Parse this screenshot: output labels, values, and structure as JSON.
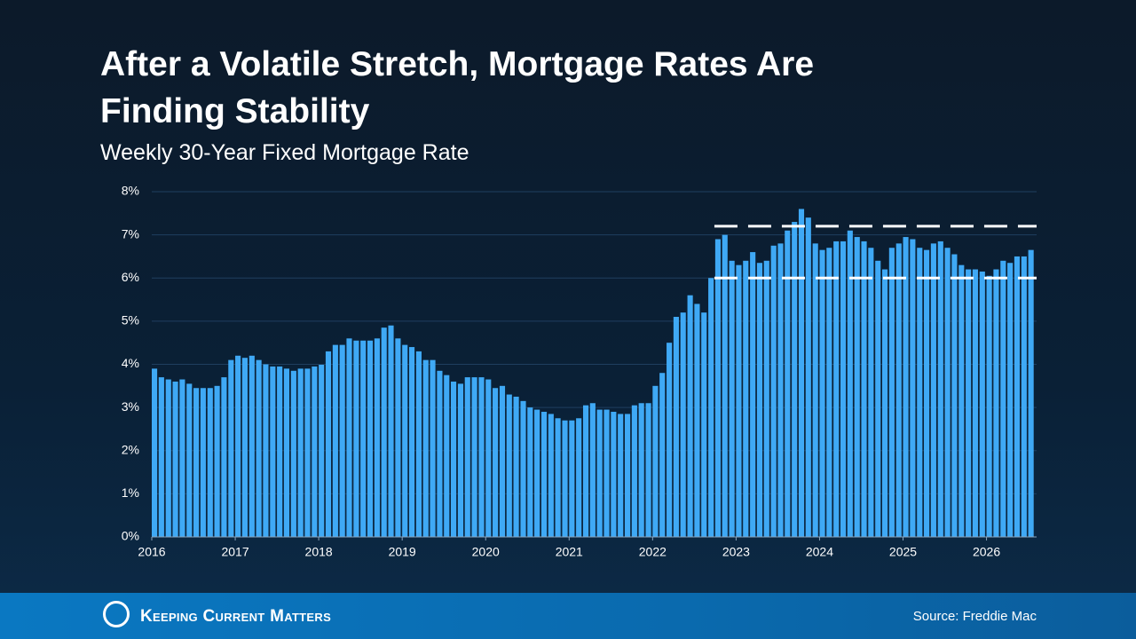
{
  "chart_data": {
    "type": "bar",
    "title": "After a Volatile Stretch, Mortgage Rates Are Finding Stability",
    "subtitle": "Weekly 30-Year Fixed Mortgage Rate",
    "color": "#3fa9f5",
    "grid": true,
    "xlim": [
      2016,
      2026.6
    ],
    "xticks": [
      2016,
      2017,
      2018,
      2019,
      2020,
      2021,
      2022,
      2023,
      2024,
      2025,
      2026
    ],
    "ylim": [
      0,
      8
    ],
    "yticks": [
      {
        "value": 0,
        "label": "0%"
      },
      {
        "value": 1,
        "label": "1%"
      },
      {
        "value": 2,
        "label": "2%"
      },
      {
        "value": 3,
        "label": "3%"
      },
      {
        "value": 4,
        "label": "4%"
      },
      {
        "value": 5,
        "label": "5%"
      },
      {
        "value": 6,
        "label": "6%"
      },
      {
        "value": 7,
        "label": "7%"
      },
      {
        "value": 8,
        "label": "8%"
      }
    ],
    "x": [
      2016,
      2016.083,
      2016.167,
      2016.25,
      2016.333,
      2016.417,
      2016.5,
      2016.583,
      2016.667,
      2016.75,
      2016.833,
      2016.917,
      2017,
      2017.083,
      2017.167,
      2017.25,
      2017.333,
      2017.417,
      2017.5,
      2017.583,
      2017.667,
      2017.75,
      2017.833,
      2017.917,
      2018,
      2018.083,
      2018.167,
      2018.25,
      2018.333,
      2018.417,
      2018.5,
      2018.583,
      2018.667,
      2018.75,
      2018.833,
      2018.917,
      2019,
      2019.083,
      2019.167,
      2019.25,
      2019.333,
      2019.417,
      2019.5,
      2019.583,
      2019.667,
      2019.75,
      2019.833,
      2019.917,
      2020,
      2020.083,
      2020.167,
      2020.25,
      2020.333,
      2020.417,
      2020.5,
      2020.583,
      2020.667,
      2020.75,
      2020.833,
      2020.917,
      2021,
      2021.083,
      2021.167,
      2021.25,
      2021.333,
      2021.417,
      2021.5,
      2021.583,
      2021.667,
      2021.75,
      2021.833,
      2021.917,
      2022,
      2022.083,
      2022.167,
      2022.25,
      2022.333,
      2022.417,
      2022.5,
      2022.583,
      2022.667,
      2022.75,
      2022.833,
      2022.917,
      2023,
      2023.083,
      2023.167,
      2023.25,
      2023.333,
      2023.417,
      2023.5,
      2023.583,
      2023.667,
      2023.75,
      2023.833,
      2023.917,
      2024,
      2024.083,
      2024.167,
      2024.25,
      2024.333,
      2024.417,
      2024.5,
      2024.583,
      2024.667,
      2024.75,
      2024.833,
      2024.917,
      2025,
      2025.083,
      2025.167,
      2025.25,
      2025.333,
      2025.417,
      2025.5,
      2025.583,
      2025.667,
      2025.75,
      2025.833,
      2025.917,
      2026,
      2026.083,
      2026.167,
      2026.25,
      2026.333,
      2026.417,
      2026.5
    ],
    "values": [
      3.9,
      3.7,
      3.65,
      3.6,
      3.65,
      3.55,
      3.45,
      3.45,
      3.45,
      3.5,
      3.7,
      4.1,
      4.2,
      4.15,
      4.2,
      4.1,
      4.0,
      3.95,
      3.95,
      3.9,
      3.85,
      3.9,
      3.9,
      3.95,
      3.99,
      4.3,
      4.45,
      4.45,
      4.6,
      4.55,
      4.55,
      4.55,
      4.6,
      4.85,
      4.9,
      4.6,
      4.45,
      4.4,
      4.3,
      4.1,
      4.1,
      3.85,
      3.75,
      3.6,
      3.55,
      3.7,
      3.7,
      3.7,
      3.65,
      3.45,
      3.5,
      3.3,
      3.25,
      3.15,
      3.0,
      2.95,
      2.9,
      2.85,
      2.75,
      2.7,
      2.7,
      2.75,
      3.05,
      3.1,
      2.95,
      2.95,
      2.9,
      2.85,
      2.85,
      3.05,
      3.1,
      3.1,
      3.5,
      3.8,
      4.5,
      5.1,
      5.2,
      5.6,
      5.4,
      5.2,
      6.0,
      6.9,
      7.0,
      6.4,
      6.3,
      6.4,
      6.6,
      6.35,
      6.4,
      6.75,
      6.8,
      7.1,
      7.3,
      7.6,
      7.4,
      6.8,
      6.65,
      6.7,
      6.85,
      6.85,
      7.1,
      6.95,
      6.85,
      6.7,
      6.4,
      6.2,
      6.7,
      6.8,
      6.95,
      6.9,
      6.7,
      6.65,
      6.8,
      6.85,
      6.7,
      6.55,
      6.3,
      6.2,
      6.2,
      6.15,
      6.05,
      6.2,
      6.4,
      6.35,
      6.5,
      6.5,
      6.65
    ],
    "reference_lines": [
      {
        "value": 7.2,
        "x_start": 2022.74,
        "color": "#ffffff"
      },
      {
        "value": 6.0,
        "x_start": 2022.74,
        "color": "#ffffff"
      }
    ]
  },
  "footer": {
    "brand": "Keeping Current Matters",
    "source": "Source: Freddie Mac"
  }
}
